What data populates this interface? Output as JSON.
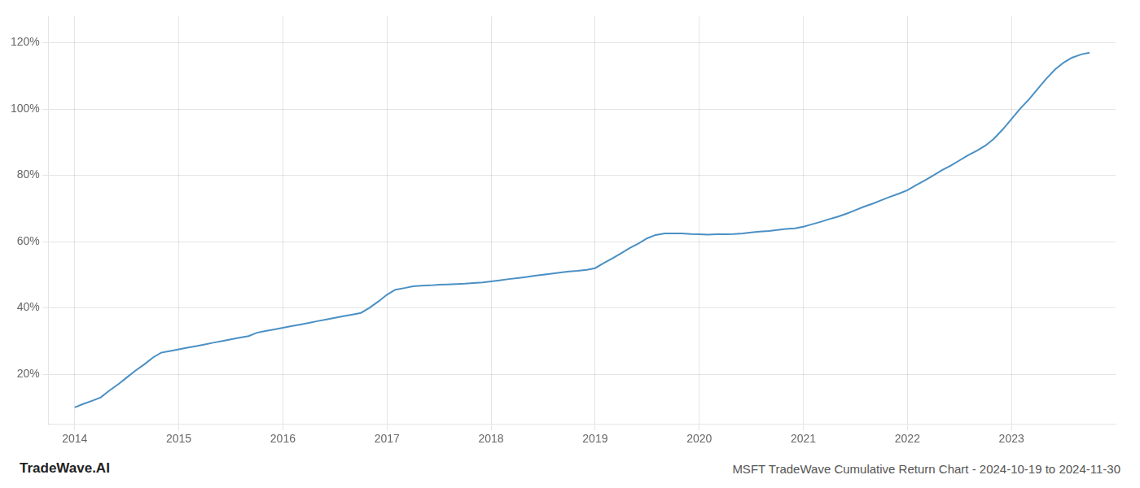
{
  "chart_data": {
    "type": "line",
    "title": "MSFT TradeWave Cumulative Return Chart - 2024-10-19 to 2024-11-30",
    "annotations": [
      "TradeWave.AI"
    ],
    "color": "#4a90c4",
    "x": [
      2014.0,
      2014.08,
      2014.17,
      2014.25,
      2014.33,
      2014.42,
      2014.5,
      2014.58,
      2014.67,
      2014.75,
      2014.83,
      2014.92,
      2015.0,
      2015.08,
      2015.17,
      2015.25,
      2015.33,
      2015.42,
      2015.5,
      2015.58,
      2015.67,
      2015.75,
      2015.83,
      2015.92,
      2016.0,
      2016.08,
      2016.17,
      2016.25,
      2016.33,
      2016.42,
      2016.5,
      2016.58,
      2016.67,
      2016.75,
      2016.83,
      2016.92,
      2017.0,
      2017.08,
      2017.17,
      2017.25,
      2017.33,
      2017.42,
      2017.5,
      2017.58,
      2017.67,
      2017.75,
      2017.83,
      2017.92,
      2018.0,
      2018.08,
      2018.17,
      2018.25,
      2018.33,
      2018.42,
      2018.5,
      2018.58,
      2018.67,
      2018.75,
      2018.83,
      2018.92,
      2019.0,
      2019.08,
      2019.17,
      2019.25,
      2019.33,
      2019.42,
      2019.5,
      2019.58,
      2019.67,
      2019.75,
      2019.83,
      2019.92,
      2020.0,
      2020.08,
      2020.17,
      2020.25,
      2020.33,
      2020.42,
      2020.5,
      2020.58,
      2020.67,
      2020.75,
      2020.83,
      2020.92,
      2021.0,
      2021.08,
      2021.17,
      2021.25,
      2021.33,
      2021.42,
      2021.5,
      2021.58,
      2021.67,
      2021.75,
      2021.83,
      2021.92,
      2022.0,
      2022.08,
      2022.17,
      2022.25,
      2022.33,
      2022.42,
      2022.5,
      2022.58,
      2022.67,
      2022.75,
      2022.83,
      2022.92,
      2023.0,
      2023.08,
      2023.17,
      2023.25,
      2023.33,
      2023.42,
      2023.5,
      2023.58,
      2023.67,
      2023.75
    ],
    "values": [
      0.1,
      0.11,
      0.12,
      0.13,
      0.15,
      0.17,
      0.19,
      0.21,
      0.23,
      0.25,
      0.265,
      0.27,
      0.275,
      0.28,
      0.285,
      0.29,
      0.295,
      0.3,
      0.305,
      0.31,
      0.315,
      0.325,
      0.33,
      0.335,
      0.34,
      0.345,
      0.35,
      0.355,
      0.36,
      0.365,
      0.37,
      0.375,
      0.38,
      0.385,
      0.4,
      0.42,
      0.44,
      0.455,
      0.46,
      0.465,
      0.467,
      0.468,
      0.47,
      0.471,
      0.472,
      0.473,
      0.475,
      0.477,
      0.48,
      0.483,
      0.487,
      0.49,
      0.493,
      0.497,
      0.5,
      0.503,
      0.507,
      0.51,
      0.512,
      0.515,
      0.52,
      0.535,
      0.55,
      0.565,
      0.58,
      0.595,
      0.61,
      0.62,
      0.625,
      0.625,
      0.625,
      0.623,
      0.622,
      0.621,
      0.622,
      0.622,
      0.623,
      0.625,
      0.628,
      0.63,
      0.632,
      0.635,
      0.638,
      0.64,
      0.645,
      0.652,
      0.66,
      0.668,
      0.675,
      0.685,
      0.695,
      0.705,
      0.715,
      0.725,
      0.735,
      0.745,
      0.755,
      0.77,
      0.785,
      0.8,
      0.815,
      0.83,
      0.845,
      0.86,
      0.875,
      0.89,
      0.91,
      0.94,
      0.97,
      1.0,
      1.03,
      1.06,
      1.09,
      1.12,
      1.14,
      1.155,
      1.165,
      1.17
    ],
    "xlim": [
      2013.75,
      2024.0
    ],
    "ylim": [
      0.05,
      1.28
    ],
    "xticks": [
      2014,
      2015,
      2016,
      2017,
      2018,
      2019,
      2020,
      2021,
      2022,
      2023
    ],
    "yticks": [
      {
        "value": 0.2,
        "label": "20%"
      },
      {
        "value": 0.4,
        "label": "40%"
      },
      {
        "value": 0.6,
        "label": "60%"
      },
      {
        "value": 0.8,
        "label": "80%"
      },
      {
        "value": 1.0,
        "label": "100%"
      },
      {
        "value": 1.2,
        "label": "120%"
      }
    ],
    "grid": true
  }
}
